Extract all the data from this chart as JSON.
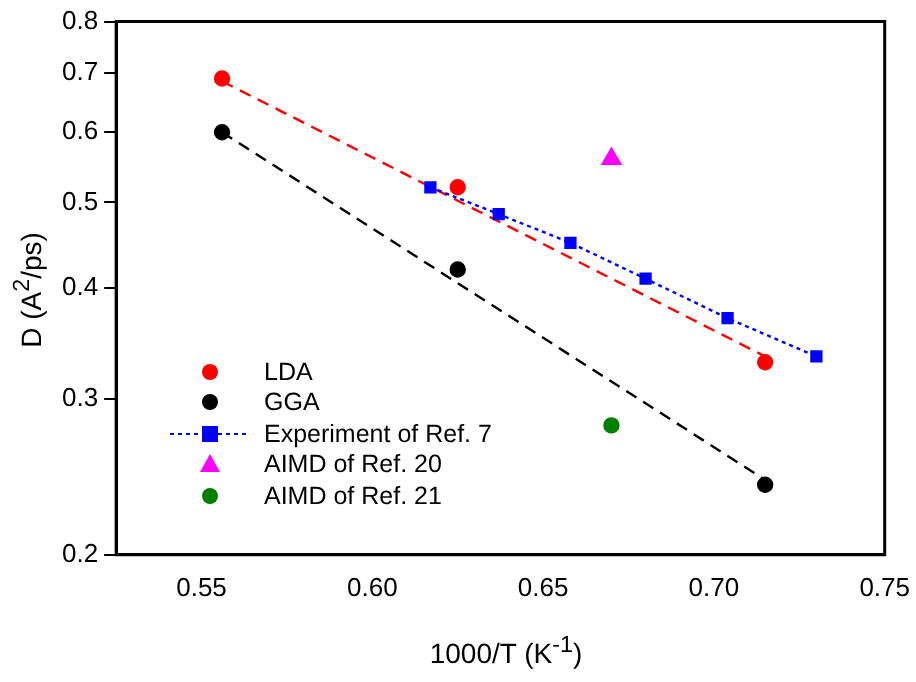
{
  "chart_data": {
    "type": "scatter",
    "xlabel": "1000/T (K$^{-1}$)",
    "ylabel": "D (A$^{2}$/ps)",
    "xlim": [
      0.525,
      0.75
    ],
    "xticks": [
      0.55,
      {
        "value": 0.6,
        "label": "0.60"
      },
      0.65,
      {
        "value": 0.7,
        "label": "0.70"
      },
      0.75
    ],
    "ylim": [
      0.2,
      0.8
    ],
    "yticks": [
      0.2,
      0.3,
      0.4,
      0.5,
      0.6,
      0.7,
      0.8
    ],
    "log": "y",
    "grid": false,
    "legend": "bottom left",
    "series": [
      {
        "name": "LDA",
        "type": "scatter",
        "marker": "circle",
        "color": "#ff0000",
        "x": [
          0.556,
          0.625,
          0.715
        ],
        "values": [
          0.69,
          0.52,
          0.33
        ]
      },
      {
        "name": "GGA",
        "type": "scatter",
        "marker": "circle",
        "color": "#000000",
        "x": [
          0.556,
          0.625,
          0.715
        ],
        "values": [
          0.6,
          0.42,
          0.24
        ]
      },
      {
        "name": "Experiment of Ref. 7",
        "type": "line",
        "marker": "square",
        "line_style": "dotted",
        "color": "#0000ff",
        "x": [
          0.617,
          0.637,
          0.658,
          0.68,
          0.704,
          0.73
        ],
        "values": [
          0.52,
          0.485,
          0.45,
          0.41,
          0.37,
          0.335
        ]
      },
      {
        "name": "AIMD of Ref. 20",
        "type": "scatter",
        "marker": "triangle",
        "color": "#ff00ff",
        "x": [
          0.67
        ],
        "values": [
          0.56
        ]
      },
      {
        "name": "AIMD of Ref. 21",
        "type": "scatter",
        "marker": "circle",
        "color": "#008000",
        "x": [
          0.67
        ],
        "values": [
          0.28
        ]
      },
      {
        "type": "line",
        "marker": "none",
        "line_style": "dashed",
        "color": "#ff0000",
        "x": [
          0.556,
          0.715
        ],
        "values": [
          0.685,
          0.335
        ]
      },
      {
        "type": "line",
        "marker": "none",
        "line_style": "dashed",
        "color": "#000000",
        "x": [
          0.556,
          0.715
        ],
        "values": [
          0.6,
          0.243
        ]
      }
    ]
  }
}
